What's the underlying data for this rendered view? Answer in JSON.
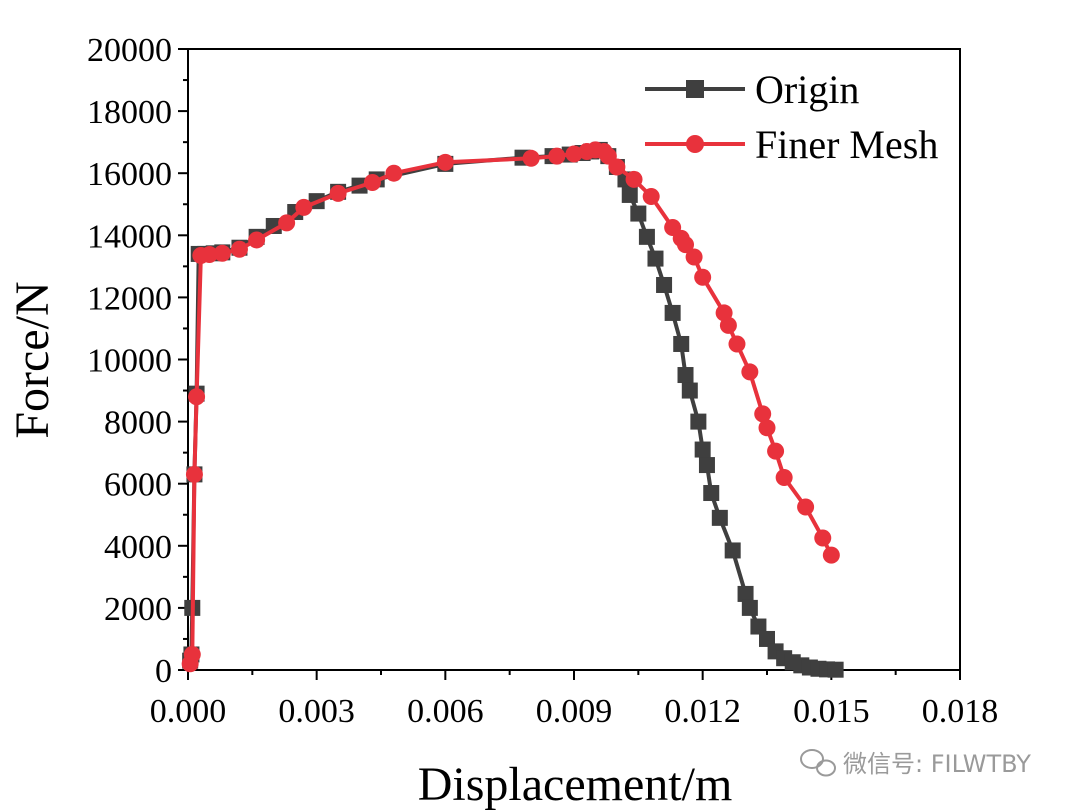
{
  "chart_data": {
    "type": "line",
    "title": "",
    "xlabel": "Displacement/m",
    "ylabel": "Force/N",
    "xlim": [
      0,
      0.018
    ],
    "ylim": [
      0,
      20000
    ],
    "xticks": [
      "0.000",
      "0.003",
      "0.006",
      "0.009",
      "0.012",
      "0.015",
      "0.018"
    ],
    "yticks": [
      "0",
      "2000",
      "4000",
      "6000",
      "8000",
      "10000",
      "12000",
      "14000",
      "16000",
      "18000",
      "20000"
    ],
    "legend_position": "top-right",
    "grid": false,
    "series": [
      {
        "name": "Origin",
        "color": "#3f3f3f",
        "marker": "square",
        "points": [
          [
            5e-05,
            300
          ],
          [
            8e-05,
            500
          ],
          [
            0.0001,
            2000
          ],
          [
            0.00015,
            6300
          ],
          [
            0.0002,
            8900
          ],
          [
            0.00025,
            13400
          ],
          [
            0.0004,
            13400
          ],
          [
            0.0006,
            13420
          ],
          [
            0.0008,
            13450
          ],
          [
            0.0012,
            13600
          ],
          [
            0.0016,
            13950
          ],
          [
            0.002,
            14300
          ],
          [
            0.0025,
            14750
          ],
          [
            0.003,
            15100
          ],
          [
            0.0035,
            15400
          ],
          [
            0.004,
            15600
          ],
          [
            0.0044,
            15800
          ],
          [
            0.006,
            16300
          ],
          [
            0.0078,
            16500
          ],
          [
            0.0085,
            16550
          ],
          [
            0.0089,
            16600
          ],
          [
            0.0092,
            16650
          ],
          [
            0.0094,
            16700
          ],
          [
            0.0096,
            16750
          ],
          [
            0.0098,
            16550
          ],
          [
            0.01,
            16200
          ],
          [
            0.0102,
            15800
          ],
          [
            0.0103,
            15300
          ],
          [
            0.0105,
            14700
          ],
          [
            0.0107,
            13950
          ],
          [
            0.0109,
            13250
          ],
          [
            0.0111,
            12400
          ],
          [
            0.0113,
            11500
          ],
          [
            0.0115,
            10500
          ],
          [
            0.0116,
            9500
          ],
          [
            0.0117,
            9000
          ],
          [
            0.0119,
            8000
          ],
          [
            0.012,
            7100
          ],
          [
            0.0121,
            6600
          ],
          [
            0.0122,
            5700
          ],
          [
            0.0124,
            4900
          ],
          [
            0.0127,
            3850
          ],
          [
            0.013,
            2450
          ],
          [
            0.0131,
            2000
          ],
          [
            0.0133,
            1400
          ],
          [
            0.0135,
            1000
          ],
          [
            0.0137,
            600
          ],
          [
            0.0139,
            380
          ],
          [
            0.0141,
            250
          ],
          [
            0.0143,
            150
          ],
          [
            0.0145,
            80
          ],
          [
            0.0147,
            40
          ],
          [
            0.0149,
            20
          ],
          [
            0.0151,
            10
          ]
        ]
      },
      {
        "name": "Finer Mesh",
        "color": "#e8323c",
        "marker": "circle",
        "points": [
          [
            5e-05,
            200
          ],
          [
            0.0001,
            500
          ],
          [
            0.00015,
            6300
          ],
          [
            0.0002,
            8800
          ],
          [
            0.0003,
            13350
          ],
          [
            0.0005,
            13380
          ],
          [
            0.0008,
            13420
          ],
          [
            0.0012,
            13550
          ],
          [
            0.0016,
            13850
          ],
          [
            0.0023,
            14400
          ],
          [
            0.0027,
            14900
          ],
          [
            0.0035,
            15350
          ],
          [
            0.0043,
            15700
          ],
          [
            0.0048,
            16000
          ],
          [
            0.006,
            16350
          ],
          [
            0.008,
            16480
          ],
          [
            0.0086,
            16550
          ],
          [
            0.009,
            16620
          ],
          [
            0.0093,
            16700
          ],
          [
            0.0095,
            16750
          ],
          [
            0.0097,
            16700
          ],
          [
            0.0098,
            16550
          ],
          [
            0.01,
            16200
          ],
          [
            0.0104,
            15800
          ],
          [
            0.0108,
            15250
          ],
          [
            0.0113,
            14250
          ],
          [
            0.0115,
            13900
          ],
          [
            0.0116,
            13700
          ],
          [
            0.0118,
            13300
          ],
          [
            0.012,
            12650
          ],
          [
            0.0125,
            11500
          ],
          [
            0.0126,
            11100
          ],
          [
            0.0128,
            10500
          ],
          [
            0.0131,
            9600
          ],
          [
            0.0134,
            8250
          ],
          [
            0.0135,
            7800
          ],
          [
            0.0137,
            7050
          ],
          [
            0.0139,
            6200
          ],
          [
            0.0144,
            5250
          ],
          [
            0.0148,
            4250
          ],
          [
            0.015,
            3700
          ]
        ]
      }
    ]
  },
  "watermark": {
    "icon": "wechat-icon",
    "text": "微信号: FILWTBY"
  }
}
